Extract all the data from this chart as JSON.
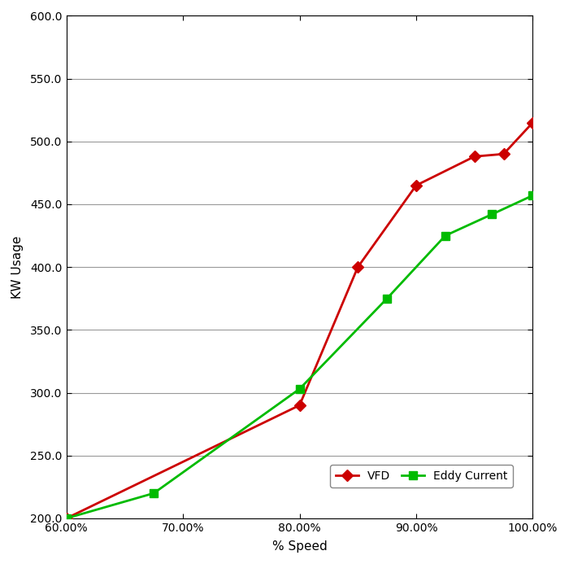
{
  "vfd_x": [
    0.6,
    0.8,
    0.85,
    0.9,
    0.95,
    0.975,
    1.0
  ],
  "vfd_y": [
    200,
    290,
    400,
    465,
    488,
    490,
    515
  ],
  "eddy_x": [
    0.6,
    0.675,
    0.8,
    0.875,
    0.925,
    0.965,
    1.0
  ],
  "eddy_y": [
    200,
    220,
    303,
    375,
    425,
    442,
    457
  ],
  "vfd_color": "#cc0000",
  "eddy_color": "#00bb00",
  "vfd_label": "VFD",
  "eddy_label": "Eddy Current",
  "xlabel": "% Speed",
  "ylabel": "KW Usage",
  "xlim": [
    0.6,
    1.0
  ],
  "ylim": [
    200.0,
    600.0
  ],
  "yticks": [
    200.0,
    250.0,
    300.0,
    350.0,
    400.0,
    450.0,
    500.0,
    550.0,
    600.0
  ],
  "xticks": [
    0.6,
    0.7,
    0.8,
    0.9,
    1.0
  ],
  "background_color": "#ffffff",
  "grid_color": "#999999",
  "marker_vfd": "D",
  "marker_eddy": "s",
  "marker_size": 7,
  "line_width": 2.0,
  "legend_loc": "lower right",
  "legend_fontsize": 10,
  "axis_fontsize": 11,
  "tick_fontsize": 10
}
